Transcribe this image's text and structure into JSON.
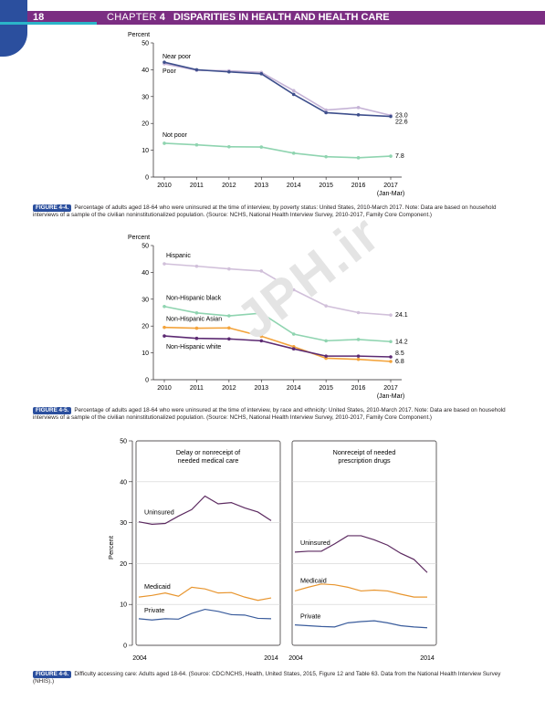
{
  "header": {
    "page_number": "18",
    "chapter_label": "CHAPTER",
    "chapter_number": "4",
    "chapter_title": "DISPARITIES IN HEALTH AND HEALTH CARE"
  },
  "watermark": "JPH.ir",
  "figures": [
    {
      "label": "FIGURE 4-4.",
      "caption": "Percentage of adults aged 18-64 who were uninsured at the time of interview, by poverty status: United States, 2010-March 2017. Note: Data are based on household interviews of a sample of the civilian noninstitutionalized population. (Source: NCHS, National Health Interview Survey, 2010-2017, Family Core Component.)"
    },
    {
      "label": "FIGURE 4-5.",
      "caption": "Percentage of adults aged 18-64 who were uninsured at the time of interview, by race and ethnicity: United States, 2010-March 2017. Note: Data are based on household interviews of a sample of the civilian noninstitutionalized population. (Source: NCHS, National Health Interview Survey, 2010-2017, Family Core Component.)"
    },
    {
      "label": "FIGURE 4-6.",
      "caption": "Difficulty accessing care: Adults aged 18-64. (Source: CDC/NCHS, Health, United States, 2015, Figure 12 and Table 63. Data from the National Health Interview Survey (NHIS).)"
    }
  ],
  "chart_data": [
    {
      "type": "line",
      "ylabel": "Percent",
      "ylim": [
        0,
        50
      ],
      "yticks": [
        "0",
        "10",
        "20",
        "30",
        "40",
        "50"
      ],
      "categories": [
        "2010",
        "2011",
        "2012",
        "2013",
        "2014",
        "2015",
        "2016",
        "2017"
      ],
      "x_note": "(Jan-Mar)",
      "series": [
        {
          "name": "Near poor",
          "color": "#c5b3d6",
          "values": [
            42.2,
            39.8,
            39.6,
            39.0,
            32.2,
            25.0,
            25.9,
            23.0
          ],
          "end_label": "23.0"
        },
        {
          "name": "Poor",
          "color": "#3e4f8c",
          "values": [
            42.8,
            40.0,
            39.2,
            38.5,
            30.8,
            24.0,
            23.2,
            22.6
          ],
          "end_label": "22.6"
        },
        {
          "name": "Not poor",
          "color": "#8fd4b0",
          "values": [
            12.6,
            12.0,
            11.3,
            11.2,
            8.9,
            7.6,
            7.2,
            7.8
          ],
          "end_label": "7.8"
        }
      ]
    },
    {
      "type": "line",
      "ylabel": "Percent",
      "ylim": [
        0,
        50
      ],
      "yticks": [
        "0",
        "10",
        "20",
        "30",
        "40",
        "50"
      ],
      "categories": [
        "2010",
        "2011",
        "2012",
        "2013",
        "2014",
        "2015",
        "2016",
        "2017"
      ],
      "x_note": "(Jan-Mar)",
      "series": [
        {
          "name": "Hispanic",
          "color": "#d1c0da",
          "values": [
            43.2,
            42.3,
            41.3,
            40.5,
            33.5,
            27.5,
            25.0,
            24.1
          ],
          "end_label": "24.1"
        },
        {
          "name": "Non-Hispanic black",
          "color": "#8fd4b0",
          "values": [
            27.3,
            24.9,
            23.8,
            24.8,
            17.0,
            14.5,
            15.0,
            14.2
          ],
          "end_label": "14.2"
        },
        {
          "name": "Non-Hispanic Asian",
          "color": "#f3a33b",
          "values": [
            19.5,
            19.2,
            19.3,
            16.2,
            12.3,
            8.0,
            7.6,
            6.8
          ],
          "end_label": "6.8"
        },
        {
          "name": "Non-Hispanic white",
          "color": "#5c2a72",
          "values": [
            16.3,
            15.4,
            15.2,
            14.5,
            11.5,
            8.8,
            8.8,
            8.5
          ],
          "end_label": "8.5"
        }
      ]
    },
    {
      "type": "line",
      "ylabel": "Percent",
      "ylim": [
        0,
        50
      ],
      "yticks": [
        "0",
        "10",
        "20",
        "30",
        "40",
        "50"
      ],
      "x": [
        2004,
        2005,
        2006,
        2007,
        2008,
        2009,
        2010,
        2011,
        2012,
        2013,
        2014
      ],
      "xtick_labels": [
        "2004",
        "2014"
      ],
      "panels": [
        {
          "title_line1": "Delay or nonreceipt of",
          "title_line2": "needed medical care",
          "series": [
            {
              "name": "Uninsured",
              "color": "#5c2a60",
              "values": [
                30.2,
                29.6,
                29.8,
                31.6,
                33.2,
                36.5,
                34.6,
                34.9,
                33.6,
                32.6,
                30.5
              ]
            },
            {
              "name": "Medicaid",
              "color": "#e8952e",
              "values": [
                11.8,
                12.2,
                12.8,
                12.0,
                14.2,
                13.8,
                12.8,
                12.9,
                11.8,
                11.0,
                11.6
              ]
            },
            {
              "name": "Private",
              "color": "#3a5c9c",
              "values": [
                6.5,
                6.2,
                6.5,
                6.4,
                7.8,
                8.8,
                8.3,
                7.5,
                7.4,
                6.6,
                6.5
              ]
            }
          ]
        },
        {
          "title_line1": "Nonreceipt of needed",
          "title_line2": "prescription drugs",
          "series": [
            {
              "name": "Uninsured",
              "color": "#5c2a60",
              "values": [
                22.8,
                23.0,
                23.0,
                24.8,
                26.8,
                26.8,
                25.8,
                24.5,
                22.5,
                21.0,
                17.8
              ]
            },
            {
              "name": "Medicaid",
              "color": "#e8952e",
              "values": [
                13.3,
                14.2,
                15.0,
                14.8,
                14.2,
                13.3,
                13.5,
                13.3,
                12.5,
                11.8,
                11.8
              ]
            },
            {
              "name": "Private",
              "color": "#3a5c9c",
              "values": [
                5.0,
                4.8,
                4.6,
                4.5,
                5.5,
                5.8,
                6.0,
                5.5,
                4.8,
                4.5,
                4.3
              ]
            }
          ]
        }
      ]
    }
  ]
}
